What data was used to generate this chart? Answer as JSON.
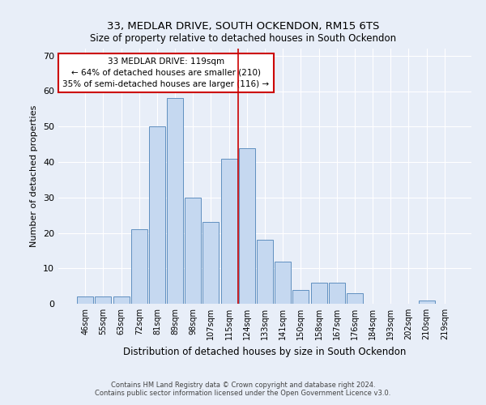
{
  "title1": "33, MEDLAR DRIVE, SOUTH OCKENDON, RM15 6TS",
  "title2": "Size of property relative to detached houses in South Ockendon",
  "xlabel": "Distribution of detached houses by size in South Ockendon",
  "ylabel": "Number of detached properties",
  "bar_labels": [
    "46sqm",
    "55sqm",
    "63sqm",
    "72sqm",
    "81sqm",
    "89sqm",
    "98sqm",
    "107sqm",
    "115sqm",
    "124sqm",
    "133sqm",
    "141sqm",
    "150sqm",
    "158sqm",
    "167sqm",
    "176sqm",
    "184sqm",
    "193sqm",
    "202sqm",
    "210sqm",
    "219sqm"
  ],
  "bar_values": [
    2,
    2,
    2,
    21,
    50,
    58,
    30,
    23,
    41,
    44,
    18,
    12,
    4,
    6,
    6,
    3,
    0,
    0,
    0,
    1,
    0
  ],
  "bar_color": "#c5d8f0",
  "bar_edge_color": "#6090c0",
  "annotation_box_text": "33 MEDLAR DRIVE: 119sqm\n← 64% of detached houses are smaller (210)\n35% of semi-detached houses are larger (116) →",
  "vline_color": "#cc0000",
  "vline_x_index": 8.5,
  "ylim": [
    0,
    72
  ],
  "yticks": [
    0,
    10,
    20,
    30,
    40,
    50,
    60,
    70
  ],
  "background_color": "#e8eef8",
  "grid_color": "#ffffff",
  "footer": "Contains HM Land Registry data © Crown copyright and database right 2024.\nContains public sector information licensed under the Open Government Licence v3.0."
}
